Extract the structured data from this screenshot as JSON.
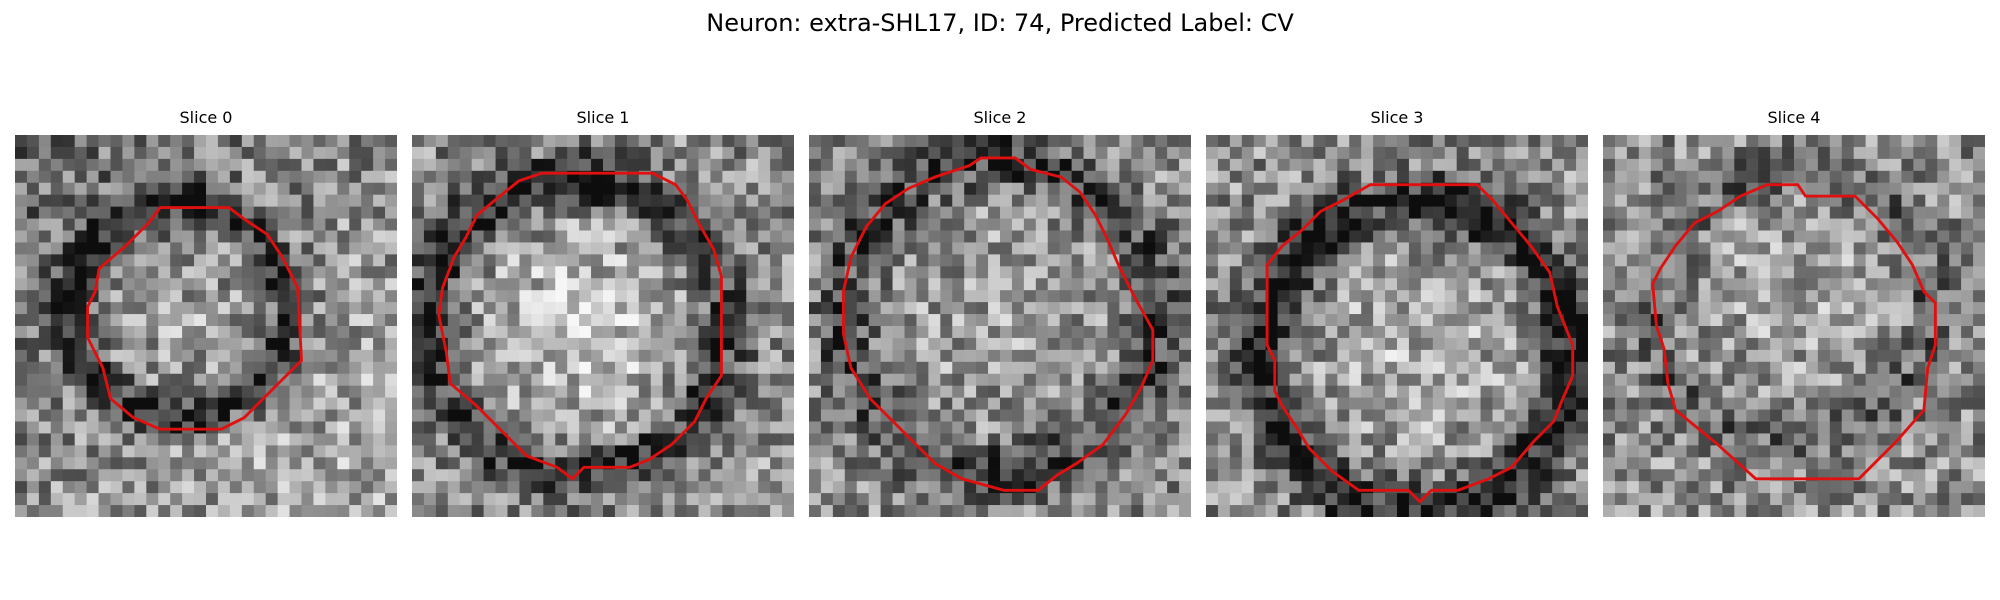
{
  "figure": {
    "suptitle": "Neuron: extra-SHL17, ID: 74, Predicted Label: CV",
    "contour_color": "#e01010",
    "colormap": "gray",
    "panels": [
      {
        "title": "Slice 0",
        "seed": 11,
        "dark_ring": 0.45,
        "bright_center": 0.1,
        "gradient": 0.3,
        "contour": [
          [
            0.38,
            0.19
          ],
          [
            0.56,
            0.19
          ],
          [
            0.6,
            0.22
          ],
          [
            0.66,
            0.26
          ],
          [
            0.7,
            0.32
          ],
          [
            0.74,
            0.4
          ],
          [
            0.75,
            0.59
          ],
          [
            0.6,
            0.74
          ],
          [
            0.54,
            0.77
          ],
          [
            0.38,
            0.77
          ],
          [
            0.31,
            0.74
          ],
          [
            0.25,
            0.69
          ],
          [
            0.23,
            0.61
          ],
          [
            0.19,
            0.53
          ],
          [
            0.19,
            0.45
          ],
          [
            0.21,
            0.41
          ],
          [
            0.22,
            0.35
          ],
          [
            0.29,
            0.29
          ],
          [
            0.35,
            0.23
          ]
        ]
      },
      {
        "title": "Slice 1",
        "seed": 23,
        "dark_ring": 0.4,
        "bright_center": 0.25,
        "gradient": 0.05,
        "contour": [
          [
            0.34,
            0.1
          ],
          [
            0.63,
            0.1
          ],
          [
            0.69,
            0.13
          ],
          [
            0.72,
            0.17
          ],
          [
            0.75,
            0.23
          ],
          [
            0.79,
            0.3
          ],
          [
            0.81,
            0.37
          ],
          [
            0.81,
            0.63
          ],
          [
            0.77,
            0.69
          ],
          [
            0.74,
            0.75
          ],
          [
            0.68,
            0.81
          ],
          [
            0.62,
            0.85
          ],
          [
            0.57,
            0.87
          ],
          [
            0.45,
            0.87
          ],
          [
            0.42,
            0.9
          ],
          [
            0.38,
            0.87
          ],
          [
            0.3,
            0.84
          ],
          [
            0.24,
            0.78
          ],
          [
            0.17,
            0.71
          ],
          [
            0.1,
            0.65
          ],
          [
            0.09,
            0.57
          ],
          [
            0.07,
            0.47
          ],
          [
            0.08,
            0.4
          ],
          [
            0.11,
            0.32
          ],
          [
            0.14,
            0.27
          ],
          [
            0.17,
            0.21
          ],
          [
            0.23,
            0.16
          ],
          [
            0.28,
            0.12
          ]
        ]
      },
      {
        "title": "Slice 2",
        "seed": 37,
        "dark_ring": 0.35,
        "bright_center": 0.08,
        "gradient": 0.0,
        "contour": [
          [
            0.42,
            0.08
          ],
          [
            0.45,
            0.06
          ],
          [
            0.54,
            0.06
          ],
          [
            0.58,
            0.09
          ],
          [
            0.66,
            0.11
          ],
          [
            0.71,
            0.15
          ],
          [
            0.75,
            0.21
          ],
          [
            0.78,
            0.27
          ],
          [
            0.81,
            0.34
          ],
          [
            0.85,
            0.42
          ],
          [
            0.9,
            0.51
          ],
          [
            0.9,
            0.59
          ],
          [
            0.87,
            0.66
          ],
          [
            0.83,
            0.73
          ],
          [
            0.77,
            0.81
          ],
          [
            0.7,
            0.86
          ],
          [
            0.65,
            0.89
          ],
          [
            0.6,
            0.93
          ],
          [
            0.51,
            0.93
          ],
          [
            0.4,
            0.9
          ],
          [
            0.33,
            0.86
          ],
          [
            0.27,
            0.8
          ],
          [
            0.2,
            0.73
          ],
          [
            0.16,
            0.69
          ],
          [
            0.11,
            0.61
          ],
          [
            0.09,
            0.52
          ],
          [
            0.09,
            0.41
          ],
          [
            0.11,
            0.32
          ],
          [
            0.15,
            0.24
          ],
          [
            0.2,
            0.18
          ],
          [
            0.26,
            0.14
          ],
          [
            0.33,
            0.11
          ]
        ]
      },
      {
        "title": "Slice 3",
        "seed": 53,
        "dark_ring": 0.5,
        "bright_center": 0.15,
        "gradient": 0.0,
        "contour": [
          [
            0.43,
            0.13
          ],
          [
            0.71,
            0.13
          ],
          [
            0.75,
            0.17
          ],
          [
            0.8,
            0.23
          ],
          [
            0.85,
            0.29
          ],
          [
            0.9,
            0.36
          ],
          [
            0.92,
            0.45
          ],
          [
            0.96,
            0.55
          ],
          [
            0.96,
            0.63
          ],
          [
            0.93,
            0.7
          ],
          [
            0.91,
            0.75
          ],
          [
            0.86,
            0.8
          ],
          [
            0.8,
            0.87
          ],
          [
            0.74,
            0.9
          ],
          [
            0.66,
            0.93
          ],
          [
            0.59,
            0.93
          ],
          [
            0.56,
            0.96
          ],
          [
            0.53,
            0.93
          ],
          [
            0.4,
            0.93
          ],
          [
            0.33,
            0.88
          ],
          [
            0.27,
            0.82
          ],
          [
            0.24,
            0.77
          ],
          [
            0.2,
            0.71
          ],
          [
            0.18,
            0.67
          ],
          [
            0.18,
            0.59
          ],
          [
            0.16,
            0.55
          ],
          [
            0.16,
            0.34
          ],
          [
            0.2,
            0.29
          ],
          [
            0.25,
            0.25
          ],
          [
            0.3,
            0.2
          ],
          [
            0.36,
            0.17
          ]
        ]
      },
      {
        "title": "Slice 4",
        "seed": 71,
        "dark_ring": 0.2,
        "bright_center": 0.12,
        "gradient": 0.0,
        "contour": [
          [
            0.43,
            0.13
          ],
          [
            0.51,
            0.13
          ],
          [
            0.53,
            0.16
          ],
          [
            0.66,
            0.16
          ],
          [
            0.72,
            0.22
          ],
          [
            0.77,
            0.28
          ],
          [
            0.81,
            0.34
          ],
          [
            0.84,
            0.41
          ],
          [
            0.87,
            0.44
          ],
          [
            0.87,
            0.55
          ],
          [
            0.85,
            0.61
          ],
          [
            0.84,
            0.72
          ],
          [
            0.77,
            0.8
          ],
          [
            0.67,
            0.9
          ],
          [
            0.4,
            0.9
          ],
          [
            0.3,
            0.81
          ],
          [
            0.19,
            0.72
          ],
          [
            0.17,
            0.65
          ],
          [
            0.16,
            0.56
          ],
          [
            0.14,
            0.5
          ],
          [
            0.13,
            0.39
          ],
          [
            0.15,
            0.35
          ],
          [
            0.19,
            0.29
          ],
          [
            0.24,
            0.23
          ],
          [
            0.3,
            0.2
          ],
          [
            0.36,
            0.16
          ]
        ]
      }
    ]
  }
}
